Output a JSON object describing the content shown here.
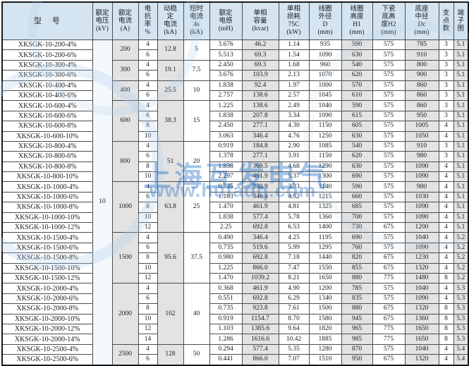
{
  "watermark": {
    "company": "上海互发电气",
    "url": "www.hufadq.com",
    "color": "#2a72c8"
  },
  "table": {
    "voltage_kv": "10",
    "headers": {
      "model": [
        "型　号"
      ],
      "voltage": [
        "额定",
        "电压",
        "(kV)"
      ],
      "current": [
        "额定",
        "电流",
        "(A)"
      ],
      "reactance": [
        "电",
        "抗",
        "率",
        "%"
      ],
      "dynamic": [
        "动稳",
        "定",
        "电流",
        "(kA)"
      ],
      "short_time": [
        "短时",
        "电流",
        "4s",
        "(kA)"
      ],
      "inductance": [
        "额定",
        "电感",
        "(mH)"
      ],
      "capacity": [
        "单相",
        "容量",
        "(kvar)"
      ],
      "loss": [
        "单相",
        "损耗",
        "75C",
        "(kW)"
      ],
      "coil_d": [
        "线圈",
        "外径",
        "D",
        "(mm)"
      ],
      "coil_h1": [
        "线圈",
        "高度",
        "H1",
        "(mm)"
      ],
      "porcelain_h2": [
        "下瓷",
        "底高",
        "度H2",
        "(mm)"
      ],
      "base_dc": [
        "底座",
        "中径",
        "Dc",
        "(mm)"
      ],
      "supports": [
        "支",
        "点",
        "数"
      ],
      "diagram": [
        "端",
        "子",
        "图"
      ]
    },
    "row_keys": [
      "model",
      "reactance",
      "inductance",
      "capacity",
      "loss",
      "d",
      "h1",
      "h2",
      "dc",
      "supports",
      "diagram"
    ],
    "groups": [
      {
        "current": "200",
        "dynamic": "12.8",
        "short_time": "5",
        "rows": [
          [
            "XKSGK-10-200-4%",
            "4",
            "3.676",
            "46.2",
            "1.14",
            "935",
            "590",
            "575",
            "785",
            "3",
            "5.1"
          ],
          [
            "XKSGK-10-200-6%",
            "6",
            "5.513",
            "69.3",
            "1.54",
            "1090",
            "630",
            "575",
            "910",
            "3",
            "5.1"
          ]
        ]
      },
      {
        "current": "300",
        "dynamic": "19.1",
        "short_time": "7.5",
        "rows": [
          [
            "XKSGK-10-300-4%",
            "4",
            "2.450",
            "69.3",
            "1.68",
            "960",
            "540",
            "575",
            "800",
            "3",
            "5.1"
          ],
          [
            "XKSGK-10-300-6%",
            "6",
            "3.676",
            "103.9",
            "2.13",
            "1070",
            "620",
            "575",
            "900",
            "3",
            "5.1"
          ]
        ]
      },
      {
        "current": "400",
        "dynamic": "25.5",
        "short_time": "10",
        "rows": [
          [
            "XKSGK-10-400-4%",
            "4",
            "1.838",
            "92.4",
            "1.97",
            "1000",
            "570",
            "575",
            "860",
            "3",
            "5.1"
          ],
          [
            "XKSGK-10-400-6%",
            "6",
            "2.757",
            "138.6",
            "2.57",
            "1045",
            "610",
            "575",
            "860",
            "3",
            "5.1"
          ]
        ]
      },
      {
        "current": "600",
        "dynamic": "38.3",
        "short_time": "15",
        "rows": [
          [
            "XKSGK-10-600-4%",
            "4",
            "1.225",
            "138.6",
            "2.49",
            "1040",
            "590",
            "575",
            "860",
            "3",
            "5.1"
          ],
          [
            "XKSGK-10-600-6%",
            "6",
            "1.838",
            "207.8",
            "3.34",
            "1090",
            "615",
            "575",
            "950",
            "3",
            "5.1"
          ],
          [
            "XKSGK-10-600-8%",
            "8",
            "2.450",
            "277.1",
            "4.30",
            "1150",
            "605",
            "575",
            "1005",
            "4",
            "5.1"
          ],
          [
            "XKSGK-10-600-10%",
            "10",
            "3.063",
            "346.4",
            "4.76",
            "1250",
            "630",
            "575",
            "1050",
            "4",
            "5.1"
          ]
        ]
      },
      {
        "current": "800",
        "dynamic": "51",
        "short_time": "20",
        "rows": [
          [
            "XKSGK-10-800-4%",
            "4",
            "0.919",
            "184.8",
            "2.90",
            "1085",
            "540",
            "575",
            "910",
            "3",
            "5.1"
          ],
          [
            "XKSGK-10-800-6%",
            "6",
            "1.378",
            "277.1",
            "3.91",
            "1150",
            "620",
            "575",
            "980",
            "3",
            "5.1"
          ],
          [
            "XKSGK-10-800-8%",
            "8",
            "1.838",
            "369.5",
            "4.68",
            "1290",
            "630",
            "575",
            "1090",
            "4",
            "5.1"
          ],
          [
            "XKSGK-10-800-10%",
            "10",
            "2.297",
            "461.9",
            "5.37",
            "1300",
            "690",
            "575",
            "1090",
            "4",
            "5.1"
          ]
        ]
      },
      {
        "current": "1000",
        "dynamic": "63.8",
        "short_time": "25",
        "rows": [
          [
            "XKSGK-10-1000-4%",
            "4",
            "0.735",
            "230.9",
            "3.33",
            "1140",
            "590",
            "575",
            "980",
            "4",
            "5.1"
          ],
          [
            "XKSGK-10-1000-6%",
            "6",
            "1.103",
            "346.4",
            "4.52",
            "1215",
            "660",
            "575",
            "1030",
            "4",
            "5.1"
          ],
          [
            "XKSGK-10-1000-8%",
            "8",
            "1.470",
            "461.9",
            "4.81",
            "1325",
            "685",
            "575",
            "1090",
            "4",
            "5.1"
          ],
          [
            "XKSGK-10-1000-10%",
            "10",
            "1.838",
            "577.4",
            "5.78",
            "1360",
            "700",
            "575",
            "1090",
            "4",
            "5.1"
          ],
          [
            "XKSGK-10-1000-12%",
            "12",
            "2.25",
            "692.8",
            "6.53",
            "1400",
            "730",
            "675",
            "1200",
            "4",
            "5.1"
          ]
        ]
      },
      {
        "current": "1500",
        "dynamic": "95.6",
        "short_time": "37.5",
        "rows": [
          [
            "XKSGK-10-1500-4%",
            "4",
            "0.490",
            "346.4",
            "4.25",
            "1195",
            "690",
            "575",
            "1040",
            "4",
            "5.2"
          ],
          [
            "XKSGK-10-1500-6%",
            "6",
            "0.735",
            "519.6",
            "5.99",
            "1295",
            "760",
            "575",
            "1090",
            "4",
            "5.2"
          ],
          [
            "XKSGK-10-1500-8%",
            "8",
            "0.980",
            "692.8",
            "7.18",
            "1440",
            "820",
            "675",
            "1230",
            "4",
            "5.2"
          ],
          [
            "XKSGK-10-1500-10%",
            "10",
            "1.225",
            "866.0",
            "7.47",
            "1550",
            "855",
            "675",
            "1320",
            "4",
            "5.2"
          ],
          [
            "XKSGK-10-1500-12%",
            "12",
            "1.470",
            "1039.2",
            "8.21",
            "1650",
            "880",
            "775",
            "1480",
            "8",
            "5.2"
          ]
        ]
      },
      {
        "current": "2000",
        "dynamic": "102",
        "short_time": "40",
        "rows": [
          [
            "XKSGK-10-2000-4%",
            "4",
            "0.368",
            "461.9",
            "4.90",
            "1200",
            "785",
            "575",
            "1040",
            "4",
            "5.3"
          ],
          [
            "XKSGK-10-2000-6%",
            "6",
            "0.551",
            "692.8",
            "6.29",
            "1340",
            "835",
            "575",
            "1090",
            "4",
            "5.3"
          ],
          [
            "XKSGK-10-2000-8%",
            "8",
            "0.735",
            "923.8",
            "7.61",
            "1500",
            "880",
            "675",
            "1320",
            "8",
            "5.3"
          ],
          [
            "XKSGK-10-2000-10%",
            "10",
            "0.919",
            "1154.7",
            "8.70",
            "1580",
            "945",
            "675",
            "1360",
            "8",
            "5.3"
          ],
          [
            "XKSGK-10-2000-12%",
            "12",
            "1.103",
            "1385.6",
            "9.64",
            "1820",
            "965",
            "775",
            "1650",
            "8",
            "5.3"
          ],
          [
            "XKSGK-10-2000-14%",
            "14",
            "1.286",
            "1616.6",
            "10.42",
            "1885",
            "985",
            "775",
            "1650",
            "8",
            "5.3"
          ]
        ]
      },
      {
        "current": "2500",
        "dynamic": "128",
        "short_time": "50",
        "rows": [
          [
            "XKSGK-10-2500-4%",
            "4",
            "0.294",
            "577.4",
            "5.35",
            "1280",
            "870",
            "575",
            "1040",
            "4",
            "5.4"
          ],
          [
            "XKSGK-10-2500-6%",
            "6",
            "0.441",
            "866.0",
            "7.07",
            "1510",
            "950",
            "675",
            "1320",
            "4",
            "5.4"
          ]
        ]
      }
    ]
  }
}
